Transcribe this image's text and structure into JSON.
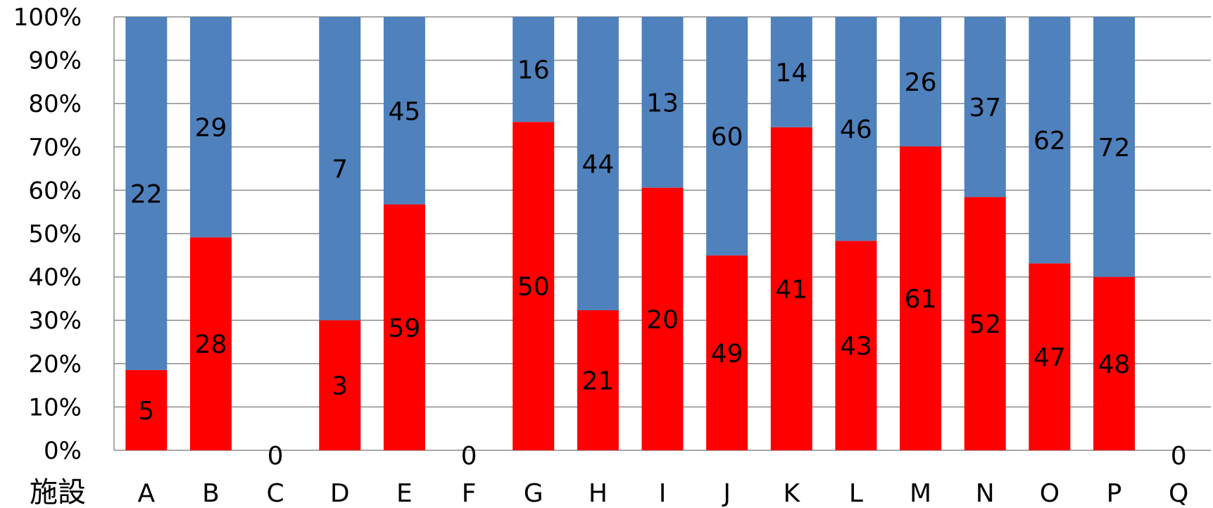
{
  "chart_data": {
    "type": "bar",
    "stacked": "percent",
    "x_axis_label": "施設",
    "categories": [
      "A",
      "B",
      "C",
      "D",
      "E",
      "F",
      "G",
      "H",
      "I",
      "J",
      "K",
      "L",
      "M",
      "N",
      "O",
      "P",
      "Q"
    ],
    "series": [
      {
        "color": "#ff0000",
        "values": [
          5,
          28,
          0,
          3,
          59,
          0,
          50,
          21,
          20,
          49,
          41,
          43,
          61,
          52,
          47,
          48,
          0
        ]
      },
      {
        "color": "#4f81bd",
        "values": [
          22,
          29,
          0,
          7,
          45,
          0,
          16,
          44,
          13,
          60,
          14,
          46,
          26,
          37,
          62,
          72,
          0
        ]
      }
    ],
    "empty_label": "0",
    "y_ticks": [
      "0%",
      "10%",
      "20%",
      "30%",
      "40%",
      "50%",
      "60%",
      "70%",
      "80%",
      "90%",
      "100%"
    ],
    "ylim": [
      0,
      100
    ],
    "grid": true,
    "legend": "none"
  }
}
